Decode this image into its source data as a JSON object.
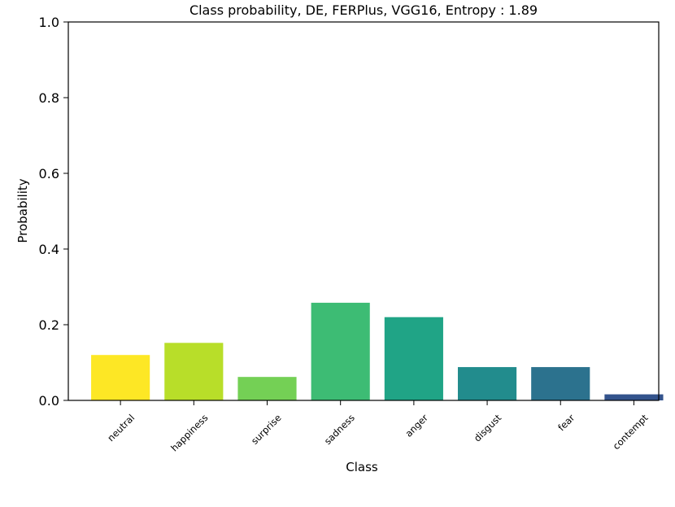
{
  "chart_data": {
    "type": "bar",
    "title": "Class probability, DE, FERPlus, VGG16, Entropy : 1.89",
    "xlabel": "Class",
    "ylabel": "Probability",
    "categories": [
      "neutral",
      "happiness",
      "surprise",
      "sadness",
      "anger",
      "disgust",
      "fear",
      "contempt"
    ],
    "values": [
      0.12,
      0.152,
      0.062,
      0.258,
      0.22,
      0.088,
      0.088,
      0.016
    ],
    "colors": [
      "#fde725",
      "#b8de29",
      "#74d055",
      "#3dbc74",
      "#20a486",
      "#228c8d",
      "#2c728e",
      "#33538c"
    ],
    "ylim": [
      0,
      1.0
    ],
    "yticks": [
      0.0,
      0.2,
      0.4,
      0.6,
      0.8,
      1.0
    ],
    "ytick_labels": [
      "0.0",
      "0.2",
      "0.4",
      "0.6",
      "0.8",
      "1.0"
    ],
    "grid": false,
    "legend": "none",
    "xtick_rotation": 45
  }
}
